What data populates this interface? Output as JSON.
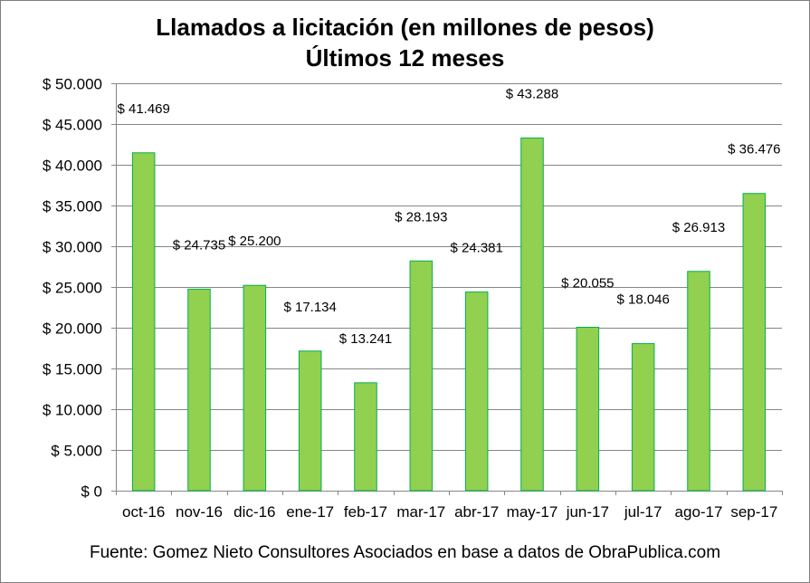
{
  "chart_data": {
    "type": "bar",
    "title": "Llamados a licitación (en millones de pesos)",
    "subtitle": "Últimos 12 meses",
    "categories": [
      "oct-16",
      "nov-16",
      "dic-16",
      "ene-17",
      "feb-17",
      "mar-17",
      "abr-17",
      "may-17",
      "jun-17",
      "jul-17",
      "ago-17",
      "sep-17"
    ],
    "values": [
      41469,
      24735,
      25200,
      17134,
      13241,
      28193,
      24381,
      43288,
      20055,
      18046,
      26913,
      36476
    ],
    "value_labels": [
      "$ 41.469",
      "$ 24.735",
      "$ 25.200",
      "$ 17.134",
      "$ 13.241",
      "$ 28.193",
      "$ 24.381",
      "$ 43.288",
      "$ 20.055",
      "$ 18.046",
      "$ 26.913",
      "$ 36.476"
    ],
    "y_ticks": [
      0,
      5000,
      10000,
      15000,
      20000,
      25000,
      30000,
      35000,
      40000,
      45000,
      50000
    ],
    "y_tick_labels": [
      "$ 0",
      "$ 5.000",
      "$ 10.000",
      "$ 15.000",
      "$ 20.000",
      "$ 25.000",
      "$ 30.000",
      "$ 35.000",
      "$ 40.000",
      "$ 45.000",
      "$ 50.000"
    ],
    "ylim": [
      0,
      50000
    ],
    "xlabel": "",
    "ylabel": "",
    "grid": true,
    "legend": "none",
    "bar_color": "#92d050",
    "bar_edge_color": "#00b050",
    "grid_color": "#868686"
  },
  "source_note": "Fuente: Gomez  Nieto Consultores Asociados en base a datos de ObraPublica.com"
}
